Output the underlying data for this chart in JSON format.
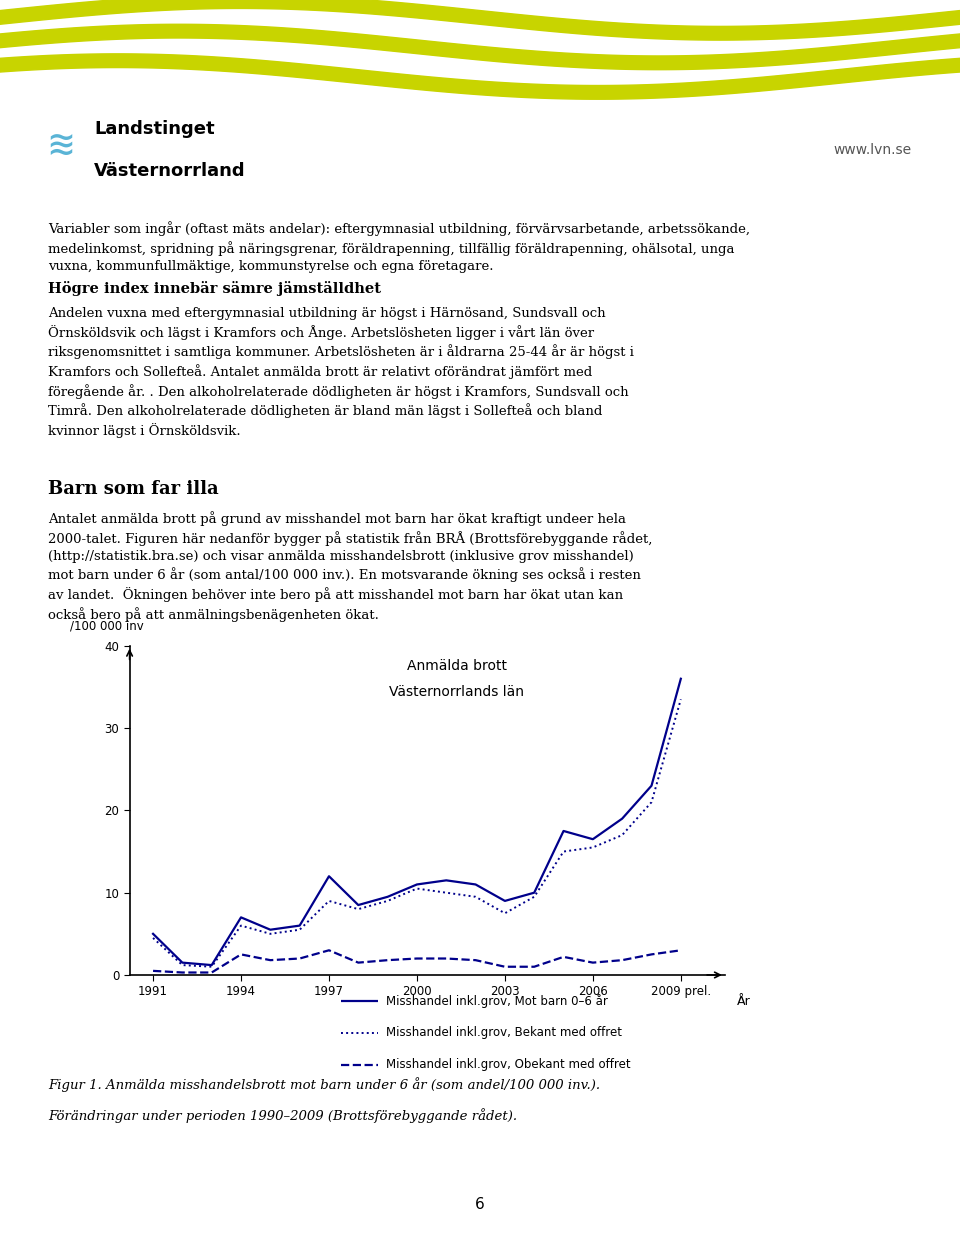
{
  "page_bg": "#ffffff",
  "wave_color": "#c8d400",
  "logo_text_line1": "Landstinget",
  "logo_text_line2": "Västernorrland",
  "website": "www.lvn.se",
  "body_text_para1": "Variabler som ingår (oftast mäts andelar): eftergymnasial utbildning, förvärvsarbetande, arbetssökande,\nmedelinkomst, spridning på näringsgrenar, föräldrapenning, tillfällig föräldrapenning, ohälsotal, unga\nvuxna, kommunfullmäktige, kommunstyrelse och egna företagare.",
  "bold_heading": "Högre index innebär sämre jämställdhet",
  "body_text_para2": "Andelen vuxna med eftergymnasial utbildning är högst i Härnösand, Sundsvall och\nÖrnsköldsvik och lägst i Kramfors och Ånge. Arbetslösheten ligger i vårt län över\nriksgenomsnittet i samtliga kommuner. Arbetslösheten är i åldrarna 25-44 år är högst i\nKramfors och Sollefteå. Antalet anmälda brott är relativt oförändrat jämfört med\nföregående år. . Den alkoholrelaterade dödligheten är högst i Kramfors, Sundsvall och\nTimrå. Den alkoholrelaterade dödligheten är bland män lägst i Sollefteå och bland\nkvinnor lägst i Örnsköldsvik.",
  "section_heading": "Barn som far illa",
  "body_text_para3": "Antalet anmälda brott på grund av misshandel mot barn har ökat kraftigt undeer hela\n2000-talet. Figuren här nedanför bygger på statistik från BRÅ (Brottsförebyggande rådet,\n(http://statistik.bra.se) och visar anmälda misshandelsbrott (inklusive grov misshandel)\nmot barn under 6 år (som antal/100 000 inv.). En motsvarande ökning ses också i resten\nav landet.  Ökningen behöver inte bero på att misshandel mot barn har ökat utan kan\nockså bero på att anmälningsbenägenheten ökat.",
  "chart_title_line1": "Anmälda brott",
  "chart_title_line2": "Västernorrlands län",
  "ylabel": "/100 000 inv",
  "xlabel": "År",
  "ylim": [
    0,
    40
  ],
  "yticks": [
    0,
    10,
    20,
    30,
    40
  ],
  "years": [
    1991,
    1992,
    1993,
    1994,
    1995,
    1996,
    1997,
    1998,
    1999,
    2000,
    2001,
    2002,
    2003,
    2004,
    2005,
    2006,
    2007,
    2008,
    2009
  ],
  "xtick_labels": [
    "1991",
    "1994",
    "1997",
    "2000",
    "2003",
    "2006",
    "2009 prel."
  ],
  "xtick_positions": [
    1991,
    1994,
    1997,
    2000,
    2003,
    2006,
    2009
  ],
  "line1_total": [
    5.0,
    1.5,
    1.2,
    7.0,
    5.5,
    6.0,
    12.0,
    8.5,
    9.5,
    11.0,
    11.5,
    11.0,
    9.0,
    10.0,
    17.5,
    16.5,
    19.0,
    23.0,
    36.0
  ],
  "line2_bekant": [
    4.5,
    1.2,
    1.0,
    6.0,
    5.0,
    5.5,
    9.0,
    8.0,
    9.0,
    10.5,
    10.0,
    9.5,
    7.5,
    9.5,
    15.0,
    15.5,
    17.0,
    21.0,
    33.5
  ],
  "line3_obekant": [
    0.5,
    0.3,
    0.3,
    2.5,
    1.8,
    2.0,
    3.0,
    1.5,
    1.8,
    2.0,
    2.0,
    1.8,
    1.0,
    1.0,
    2.2,
    1.5,
    1.8,
    2.5,
    3.0
  ],
  "line_color": "#00008B",
  "legend_labels": [
    "Misshandel inkl.grov, Mot barn 0–6 år",
    "Misshandel inkl.grov, Bekant med offret",
    "Misshandel inkl.grov, Obekant med offret"
  ],
  "figure_caption_line1": "Figur 1. Anmälda misshandelsbrott mot barn under 6 år (som andel/100 000 inv.).",
  "figure_caption_line2": "Förändringar under perioden 1990–2009 (Brottsförebyggande rådet).",
  "page_number": "6"
}
